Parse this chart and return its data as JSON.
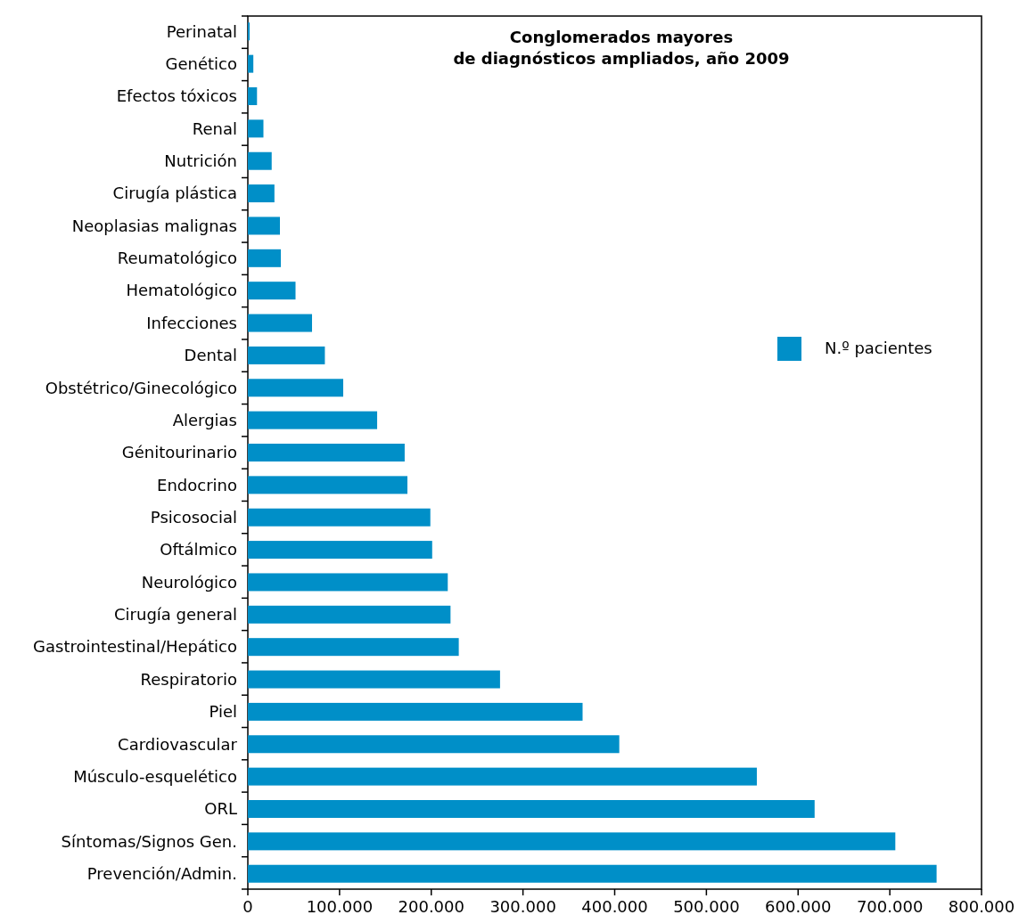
{
  "chart_data": {
    "type": "bar",
    "orientation": "horizontal",
    "title": "Conglomerados mayores\nde diagnósticos ampliados, año 2009",
    "categories": [
      "Perinatal",
      "Genético",
      "Efectos tóxicos",
      "Renal",
      "Nutrición",
      "Cirugía plástica",
      "Neoplasias malignas",
      "Reumatológico",
      "Hematológico",
      "Infecciones",
      "Dental",
      "Obstétrico/Ginecológico",
      "Alergias",
      "Génitourinario",
      "Endocrino",
      "Psicosocial",
      "Oftálmico",
      "Neurológico",
      "Cirugía general",
      "Gastrointestinal/Hepático",
      "Respiratorio",
      "Piel",
      "Cardiovascular",
      "Músculo-esquelético",
      "ORL",
      "Síntomas/Signos Gen.",
      "Prevención/Admin."
    ],
    "series": [
      {
        "name": "N.º pacientes",
        "color": "#008fc8",
        "values": [
          2000,
          6000,
          10000,
          17000,
          26000,
          29000,
          35000,
          36000,
          52000,
          70000,
          84000,
          104000,
          141000,
          171000,
          174000,
          199000,
          201000,
          218000,
          221000,
          230000,
          275000,
          365000,
          405000,
          555000,
          618000,
          706000,
          751000
        ]
      }
    ],
    "xlim": [
      0,
      800000
    ],
    "xticks": [
      0,
      {
        "value": 100000,
        "label": "100.000"
      },
      {
        "value": 200000,
        "label": "200.000"
      },
      {
        "value": 300000,
        "label": "300.000"
      },
      {
        "value": 400000,
        "label": "400.000"
      },
      {
        "value": 500000,
        "label": "500.000"
      },
      {
        "value": 600000,
        "label": "600.000"
      },
      {
        "value": 700000,
        "label": "700.000"
      },
      {
        "value": 800000,
        "label": "800.000"
      }
    ],
    "grid": false,
    "legend": "right"
  }
}
